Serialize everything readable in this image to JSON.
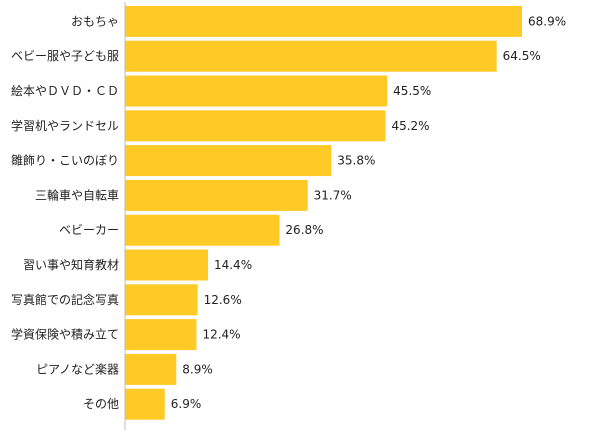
{
  "chart_data": {
    "type": "bar",
    "orientation": "horizontal",
    "title": "",
    "xlabel": "",
    "ylabel": "",
    "categories": [
      "おもちゃ",
      "ベビー服や子ども服",
      "絵本やＤＶＤ・ＣＤ",
      "学習机やランドセル",
      "雛飾り・こいのぼり",
      "三輪車や自転車",
      "ベビーカー",
      "習い事や知育教材",
      "写真館での記念写真",
      "学資保険や積み立て",
      "ピアノなど楽器",
      "その他"
    ],
    "values": [
      68.9,
      64.5,
      45.5,
      45.2,
      35.8,
      31.7,
      26.8,
      14.4,
      12.6,
      12.4,
      8.9,
      6.9
    ],
    "value_labels": [
      "68.9%",
      "64.5%",
      "45.5%",
      "45.2%",
      "35.8%",
      "31.7%",
      "26.8%",
      "14.4%",
      "12.6%",
      "12.4%",
      "8.9%",
      "6.9%"
    ],
    "unit": "%",
    "xlim": [
      0,
      71.5
    ],
    "bar_color": "#FFC926",
    "grid": false,
    "legend": "none"
  }
}
